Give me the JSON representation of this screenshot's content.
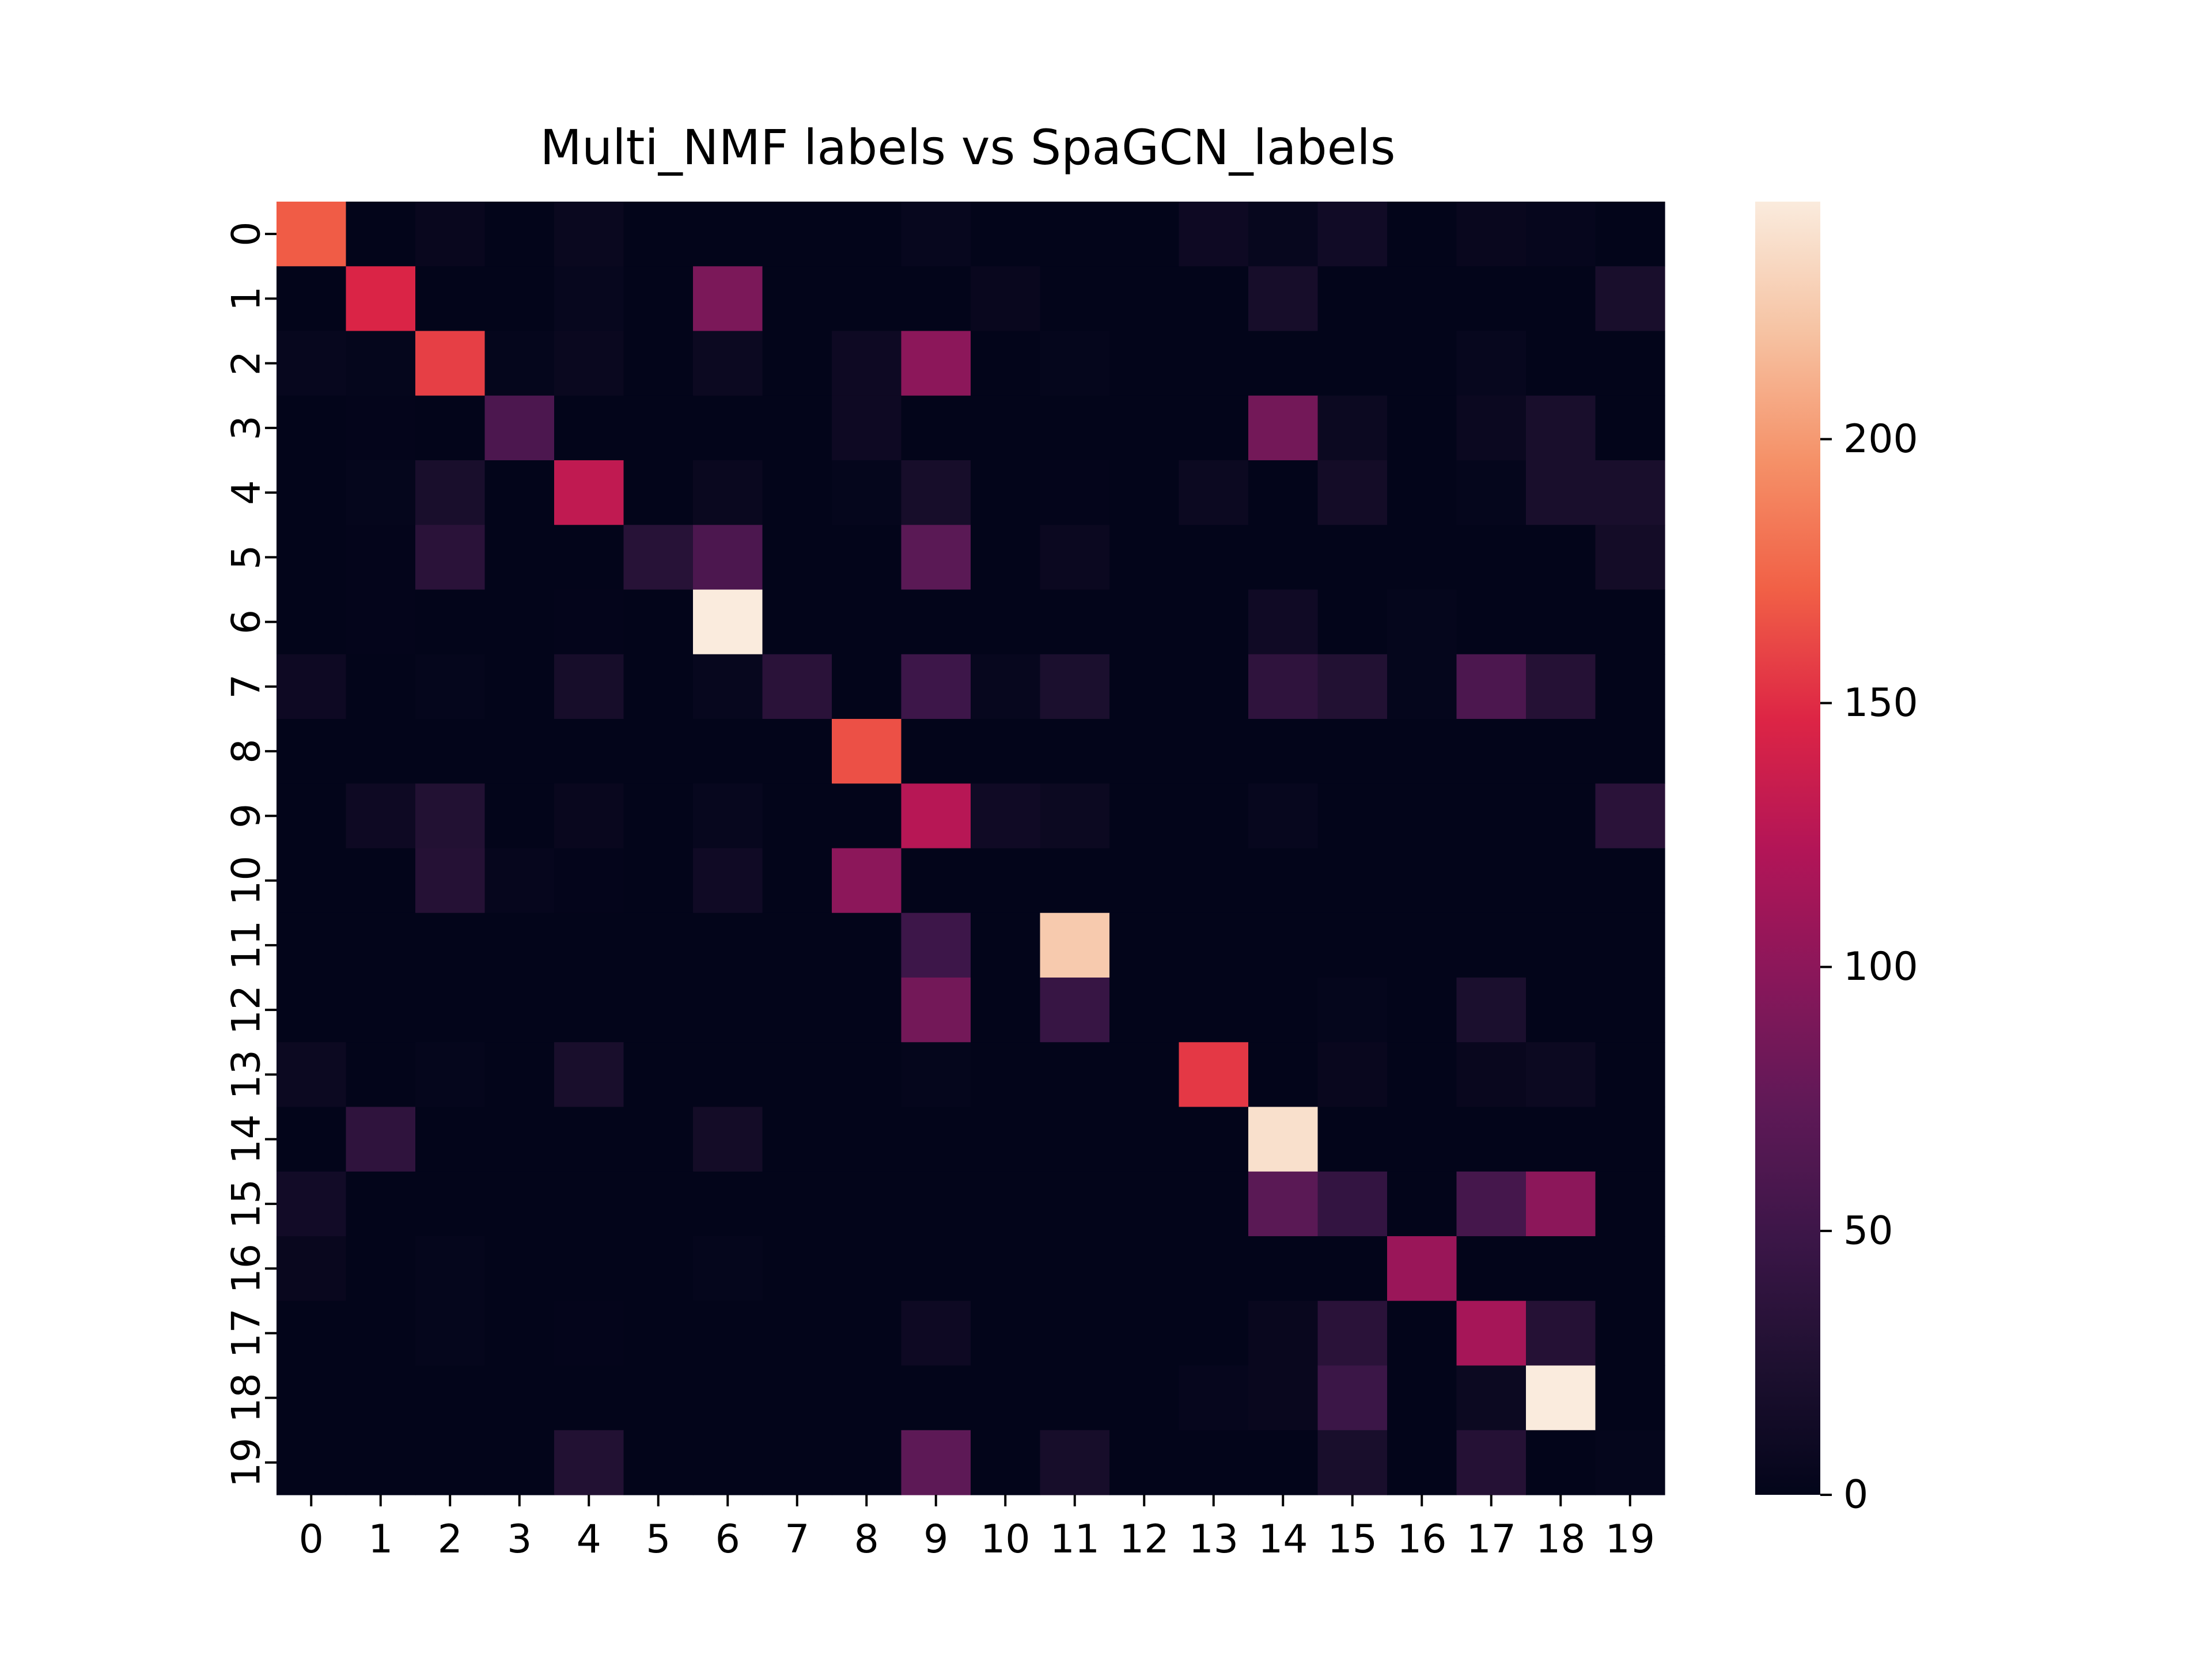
{
  "chart_data": {
    "type": "heatmap",
    "title": "Multi_NMF labels vs SpaGCN_labels",
    "xlabel": "",
    "ylabel": "",
    "x_categories": [
      "0",
      "1",
      "2",
      "3",
      "4",
      "5",
      "6",
      "7",
      "8",
      "9",
      "10",
      "11",
      "12",
      "13",
      "14",
      "15",
      "16",
      "17",
      "18",
      "19"
    ],
    "y_categories": [
      "0",
      "1",
      "2",
      "3",
      "4",
      "5",
      "6",
      "7",
      "8",
      "9",
      "10",
      "11",
      "12",
      "13",
      "14",
      "15",
      "16",
      "17",
      "18",
      "19"
    ],
    "values": [
      [
        170,
        0,
        5,
        0,
        6,
        0,
        0,
        0,
        0,
        4,
        0,
        0,
        0,
        10,
        4,
        13,
        0,
        5,
        3,
        0
      ],
      [
        0,
        145,
        0,
        0,
        4,
        0,
        90,
        0,
        0,
        0,
        5,
        0,
        0,
        0,
        18,
        0,
        0,
        0,
        0,
        20
      ],
      [
        4,
        2,
        158,
        2,
        6,
        0,
        8,
        0,
        10,
        100,
        0,
        2,
        0,
        0,
        0,
        0,
        0,
        4,
        0,
        0
      ],
      [
        0,
        1,
        0,
        60,
        0,
        0,
        0,
        0,
        10,
        0,
        0,
        0,
        0,
        0,
        85,
        8,
        0,
        7,
        20,
        0
      ],
      [
        0,
        2,
        20,
        0,
        130,
        0,
        6,
        0,
        2,
        18,
        0,
        1,
        0,
        8,
        0,
        15,
        0,
        2,
        20,
        20
      ],
      [
        0,
        1,
        34,
        0,
        0,
        32,
        60,
        0,
        0,
        70,
        0,
        7,
        0,
        0,
        0,
        0,
        0,
        0,
        0,
        15
      ],
      [
        0,
        1,
        0,
        0,
        1,
        0,
        245,
        0,
        0,
        0,
        0,
        0,
        0,
        0,
        12,
        0,
        2,
        0,
        0,
        0
      ],
      [
        10,
        0,
        2,
        0,
        18,
        0,
        4,
        34,
        0,
        50,
        4,
        22,
        0,
        0,
        38,
        28,
        2,
        60,
        30,
        0
      ],
      [
        0,
        0,
        0,
        0,
        0,
        0,
        0,
        0,
        165,
        0,
        0,
        0,
        0,
        0,
        0,
        0,
        0,
        0,
        0,
        0
      ],
      [
        0,
        10,
        28,
        0,
        5,
        0,
        4,
        0,
        0,
        125,
        12,
        8,
        0,
        0,
        4,
        0,
        0,
        0,
        0,
        34
      ],
      [
        0,
        0,
        30,
        3,
        1,
        0,
        12,
        0,
        100,
        0,
        0,
        0,
        0,
        0,
        0,
        0,
        0,
        0,
        0,
        0
      ],
      [
        0,
        0,
        0,
        0,
        0,
        0,
        0,
        0,
        0,
        50,
        0,
        225,
        0,
        0,
        0,
        0,
        0,
        0,
        0,
        0
      ],
      [
        0,
        0,
        0,
        0,
        0,
        0,
        0,
        0,
        0,
        85,
        0,
        45,
        0,
        0,
        0,
        2,
        0,
        22,
        0,
        0
      ],
      [
        8,
        0,
        2,
        0,
        20,
        0,
        0,
        0,
        0,
        2,
        0,
        0,
        0,
        155,
        0,
        5,
        0,
        5,
        8,
        0
      ],
      [
        0,
        38,
        0,
        0,
        0,
        0,
        15,
        0,
        0,
        0,
        0,
        0,
        0,
        0,
        238,
        0,
        0,
        0,
        0,
        0
      ],
      [
        14,
        0,
        0,
        0,
        0,
        0,
        0,
        0,
        0,
        0,
        0,
        0,
        0,
        0,
        70,
        42,
        0,
        55,
        100,
        0
      ],
      [
        5,
        0,
        2,
        0,
        0,
        0,
        2,
        0,
        0,
        0,
        0,
        0,
        0,
        0,
        0,
        0,
        108,
        0,
        0,
        0
      ],
      [
        0,
        0,
        2,
        0,
        1,
        0,
        0,
        0,
        0,
        10,
        0,
        0,
        0,
        0,
        5,
        34,
        0,
        115,
        30,
        0
      ],
      [
        0,
        0,
        0,
        0,
        0,
        0,
        0,
        0,
        0,
        0,
        0,
        0,
        0,
        3,
        5,
        48,
        0,
        8,
        245,
        0
      ],
      [
        0,
        0,
        0,
        0,
        28,
        0,
        0,
        0,
        0,
        72,
        0,
        18,
        0,
        0,
        0,
        20,
        0,
        30,
        0,
        2
      ]
    ],
    "colorbar": {
      "min": 0,
      "max": 245,
      "ticks": [
        0,
        50,
        100,
        150,
        200
      ]
    },
    "colormap": "rocket",
    "grid": false,
    "legend": "colorbar-right"
  }
}
